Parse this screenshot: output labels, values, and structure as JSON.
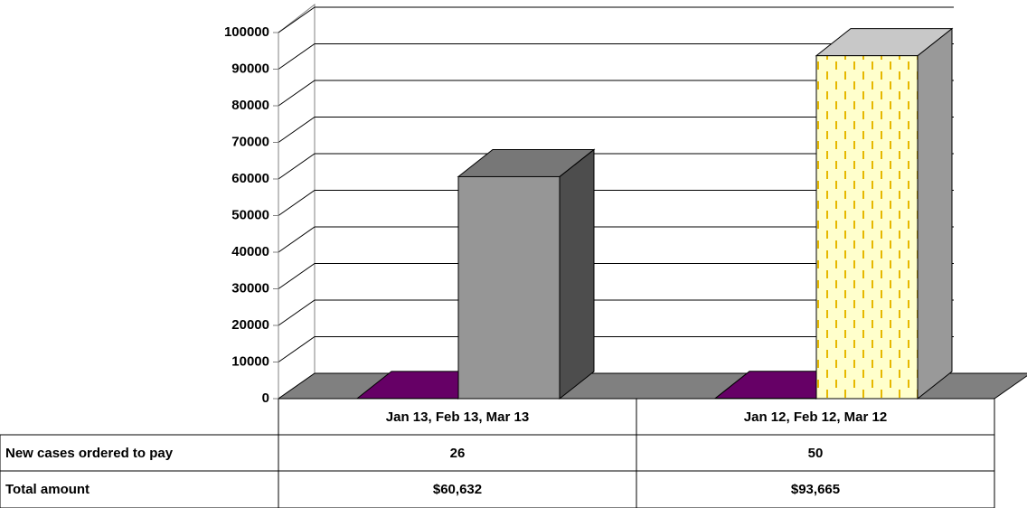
{
  "chart_data": {
    "type": "bar3d",
    "categories": [
      "Jan 13, Feb 13, Mar 13",
      "Jan 12, Feb 12, Mar 12"
    ],
    "series": [
      {
        "name": "New cases ordered to pay",
        "color": "#660066",
        "values": [
          26,
          50
        ]
      },
      {
        "name": "Total amount",
        "colors": [
          "#969696",
          "#ffffcc"
        ],
        "values": [
          60632,
          93665
        ],
        "value_labels": [
          "$60,632",
          "$93,665"
        ]
      }
    ],
    "ylim": [
      0,
      100000
    ],
    "yticks": [
      0,
      10000,
      20000,
      30000,
      40000,
      50000,
      60000,
      70000,
      80000,
      90000,
      100000
    ],
    "grid": true
  }
}
